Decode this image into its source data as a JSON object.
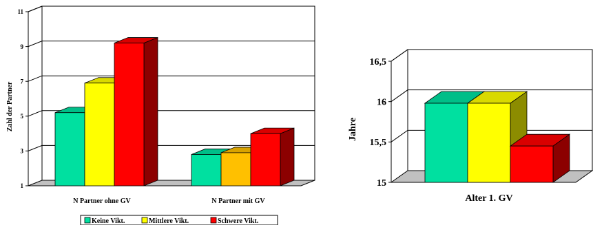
{
  "colors": {
    "keine": "#00e0a0",
    "mittlere": "#ffff00",
    "mittlere_alt": "#ffc000",
    "schwere": "#ff0000",
    "floor": "#c0c0c0"
  },
  "chart_data": [
    {
      "type": "bar",
      "title": "",
      "xlabel": "",
      "ylabel": "Zahl der Partner",
      "ylim": [
        1,
        11
      ],
      "yticks": [
        "1",
        "3",
        "5",
        "7",
        "9",
        "11"
      ],
      "grid": true,
      "categories": [
        "N Partner ohne GV",
        "N Partner mit GV"
      ],
      "series": [
        {
          "name": "Keine Vikt.",
          "values": [
            5.2,
            2.8
          ]
        },
        {
          "name": "Mittlere Vikt.",
          "values": [
            6.9,
            2.9
          ]
        },
        {
          "name": "Schwere Vikt.",
          "values": [
            9.2,
            4.0
          ]
        }
      ],
      "legend": {
        "placement": "bottom",
        "entries": [
          "Keine Vikt.",
          "Mittlere Vikt.",
          "Schwere Vikt."
        ]
      }
    },
    {
      "type": "bar",
      "title": "",
      "xlabel": "",
      "ylabel": "Jahre",
      "ylim": [
        15,
        16.5
      ],
      "yticks": [
        "15",
        "15,5",
        "16",
        "16,5"
      ],
      "grid": true,
      "categories": [
        "Alter 1. GV"
      ],
      "series": [
        {
          "name": "Keine Vikt.",
          "values": [
            15.98
          ]
        },
        {
          "name": "Mittlere Vikt.",
          "values": [
            15.98
          ]
        },
        {
          "name": "Schwere Vikt.",
          "values": [
            15.45
          ]
        }
      ]
    }
  ]
}
